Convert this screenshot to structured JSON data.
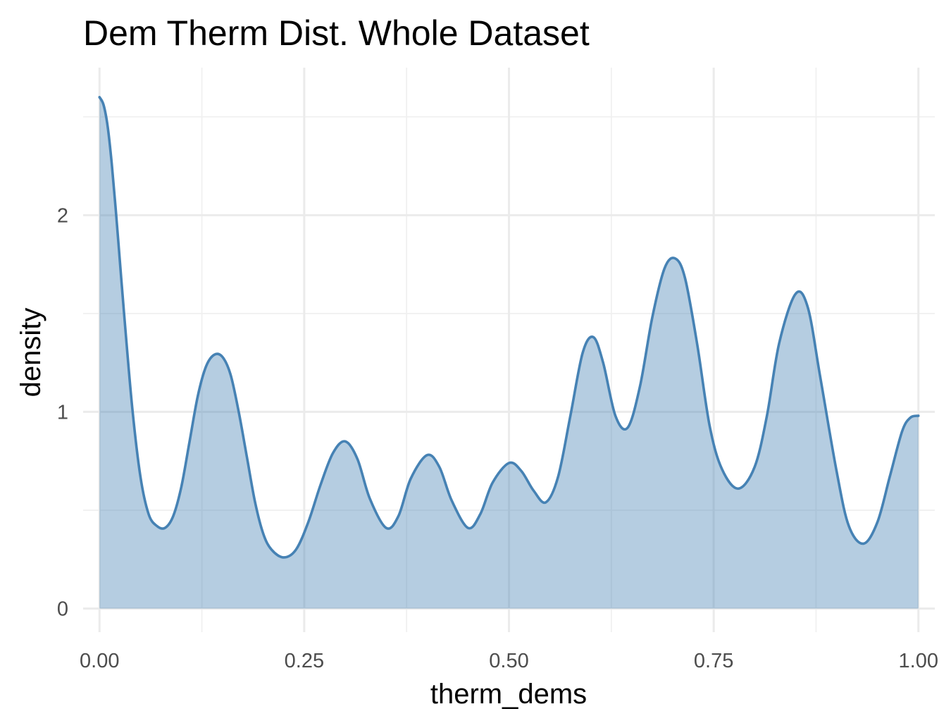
{
  "chart_data": {
    "type": "area",
    "title": "Dem Therm Dist. Whole Dataset",
    "xlabel": "therm_dems",
    "ylabel": "density",
    "xlim": [
      -0.02,
      1.02
    ],
    "ylim": [
      -0.12,
      2.75
    ],
    "x_ticks": [
      0.0,
      0.25,
      0.5,
      0.75,
      1.0
    ],
    "x_tick_labels": [
      "0.00",
      "0.25",
      "0.50",
      "0.75",
      "1.00"
    ],
    "y_ticks": [
      0,
      1,
      2
    ],
    "y_tick_labels": [
      "0",
      "1",
      "2"
    ],
    "grid": true,
    "legend": "none",
    "colors": {
      "line": "#4682b4",
      "fill": "#4682b4",
      "fill_opacity": 0.4
    },
    "x": [
      0.0,
      0.005,
      0.01,
      0.015,
      0.02,
      0.025,
      0.03,
      0.04,
      0.05,
      0.06,
      0.07,
      0.08,
      0.09,
      0.1,
      0.11,
      0.12,
      0.13,
      0.14,
      0.15,
      0.16,
      0.17,
      0.18,
      0.19,
      0.2,
      0.21,
      0.225,
      0.24,
      0.255,
      0.27,
      0.285,
      0.3,
      0.315,
      0.33,
      0.35,
      0.365,
      0.38,
      0.4,
      0.415,
      0.43,
      0.45,
      0.465,
      0.48,
      0.5,
      0.515,
      0.53,
      0.545,
      0.56,
      0.575,
      0.59,
      0.603,
      0.615,
      0.63,
      0.645,
      0.66,
      0.675,
      0.69,
      0.703,
      0.715,
      0.73,
      0.745,
      0.76,
      0.78,
      0.8,
      0.815,
      0.83,
      0.85,
      0.865,
      0.88,
      0.9,
      0.915,
      0.933,
      0.95,
      0.965,
      0.98,
      0.99,
      1.0
    ],
    "y": [
      2.6,
      2.56,
      2.45,
      2.26,
      2.02,
      1.76,
      1.5,
      1.02,
      0.67,
      0.48,
      0.42,
      0.41,
      0.47,
      0.62,
      0.85,
      1.08,
      1.23,
      1.29,
      1.28,
      1.19,
      1.0,
      0.77,
      0.54,
      0.38,
      0.3,
      0.26,
      0.3,
      0.44,
      0.63,
      0.79,
      0.85,
      0.76,
      0.56,
      0.41,
      0.47,
      0.66,
      0.78,
      0.72,
      0.55,
      0.41,
      0.48,
      0.64,
      0.74,
      0.7,
      0.6,
      0.54,
      0.67,
      0.98,
      1.3,
      1.38,
      1.25,
      0.98,
      0.92,
      1.13,
      1.48,
      1.73,
      1.78,
      1.68,
      1.34,
      0.93,
      0.71,
      0.61,
      0.72,
      0.98,
      1.35,
      1.6,
      1.53,
      1.18,
      0.7,
      0.42,
      0.33,
      0.44,
      0.67,
      0.9,
      0.97,
      0.98
    ]
  }
}
